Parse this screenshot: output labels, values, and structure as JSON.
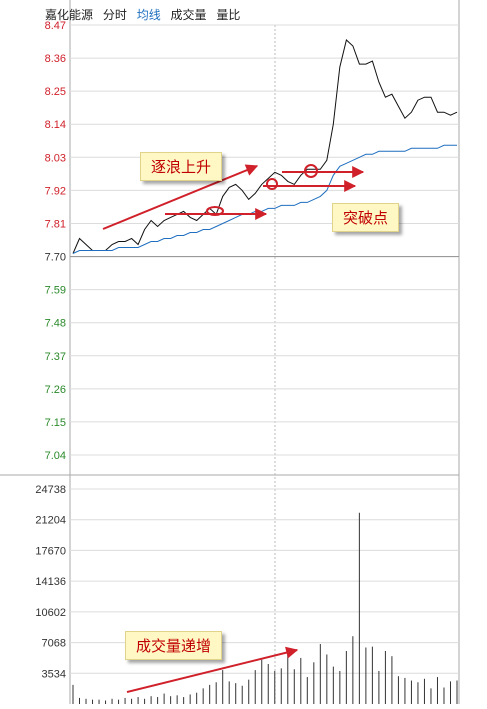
{
  "header": {
    "name": "嘉化能源",
    "tab_time": "分时",
    "tab_avg": "均线",
    "tab_volume": "成交量",
    "tab_ratio": "量比"
  },
  "annotations": {
    "wave_up": "逐浪上升",
    "breakout": "突破点",
    "volume_up": "成交量递增"
  },
  "colors": {
    "up": "#d0202a",
    "down": "#2a8a2a",
    "price_line": "#111111",
    "avg_line": "#1f6fc0",
    "arrow": "#d0202a"
  },
  "chart_data": [
    {
      "type": "line",
      "title": "",
      "xlabel": "",
      "ylabel": "",
      "yticks": [
        "8.47",
        "8.36",
        "8.25",
        "8.14",
        "8.03",
        "7.92",
        "7.81",
        "7.70",
        "7.59",
        "7.48",
        "7.37",
        "7.26",
        "7.15",
        "7.04"
      ],
      "ylim": [
        7.04,
        8.47
      ],
      "prev_close": 7.7,
      "grid": true,
      "series": [
        {
          "role": "price",
          "values": [
            7.71,
            7.76,
            7.74,
            7.72,
            7.72,
            7.72,
            7.74,
            7.75,
            7.75,
            7.76,
            7.74,
            7.79,
            7.82,
            7.8,
            7.82,
            7.83,
            7.84,
            7.85,
            7.83,
            7.82,
            7.84,
            7.86,
            7.84,
            7.9,
            7.93,
            7.94,
            7.92,
            7.89,
            7.91,
            7.94,
            7.96,
            7.98,
            7.97,
            7.95,
            7.94,
            7.97,
            7.99,
            7.99,
            7.99,
            8.02,
            8.14,
            8.33,
            8.42,
            8.4,
            8.34,
            8.34,
            8.35,
            8.28,
            8.23,
            8.24,
            8.2,
            8.16,
            8.18,
            8.22,
            8.23,
            8.23,
            8.18,
            8.18,
            8.17,
            8.18
          ]
        },
        {
          "role": "average",
          "values": [
            7.71,
            7.72,
            7.72,
            7.72,
            7.72,
            7.72,
            7.72,
            7.73,
            7.73,
            7.73,
            7.73,
            7.74,
            7.75,
            7.75,
            7.76,
            7.76,
            7.77,
            7.77,
            7.78,
            7.78,
            7.79,
            7.79,
            7.8,
            7.81,
            7.82,
            7.83,
            7.84,
            7.84,
            7.85,
            7.85,
            7.86,
            7.86,
            7.87,
            7.87,
            7.87,
            7.88,
            7.88,
            7.89,
            7.9,
            7.92,
            7.97,
            8.0,
            8.01,
            8.02,
            8.03,
            8.04,
            8.04,
            8.05,
            8.05,
            8.05,
            8.05,
            8.05,
            8.06,
            8.06,
            8.06,
            8.06,
            8.06,
            8.07,
            8.07,
            8.07
          ]
        }
      ]
    },
    {
      "type": "bar",
      "title": "",
      "xlabel": "",
      "ylabel": "",
      "yticks": [
        "24738",
        "21204",
        "17670",
        "14136",
        "10602",
        "7068",
        "3534"
      ],
      "ylim": [
        0,
        24738
      ],
      "grid": true,
      "values": [
        2200,
        700,
        600,
        500,
        500,
        400,
        600,
        500,
        700,
        600,
        800,
        600,
        900,
        800,
        1200,
        900,
        1000,
        800,
        1100,
        1300,
        1800,
        2200,
        2500,
        3900,
        2600,
        2400,
        2100,
        2800,
        3900,
        5100,
        4600,
        3800,
        4100,
        6200,
        4000,
        5300,
        3100,
        4800,
        6900,
        5700,
        4300,
        3800,
        6100,
        7800,
        22000,
        6500,
        6600,
        3800,
        6100,
        5500,
        3200,
        3000,
        2700,
        2500,
        2900,
        1800,
        3100,
        1900,
        2600,
        2700
      ]
    }
  ]
}
